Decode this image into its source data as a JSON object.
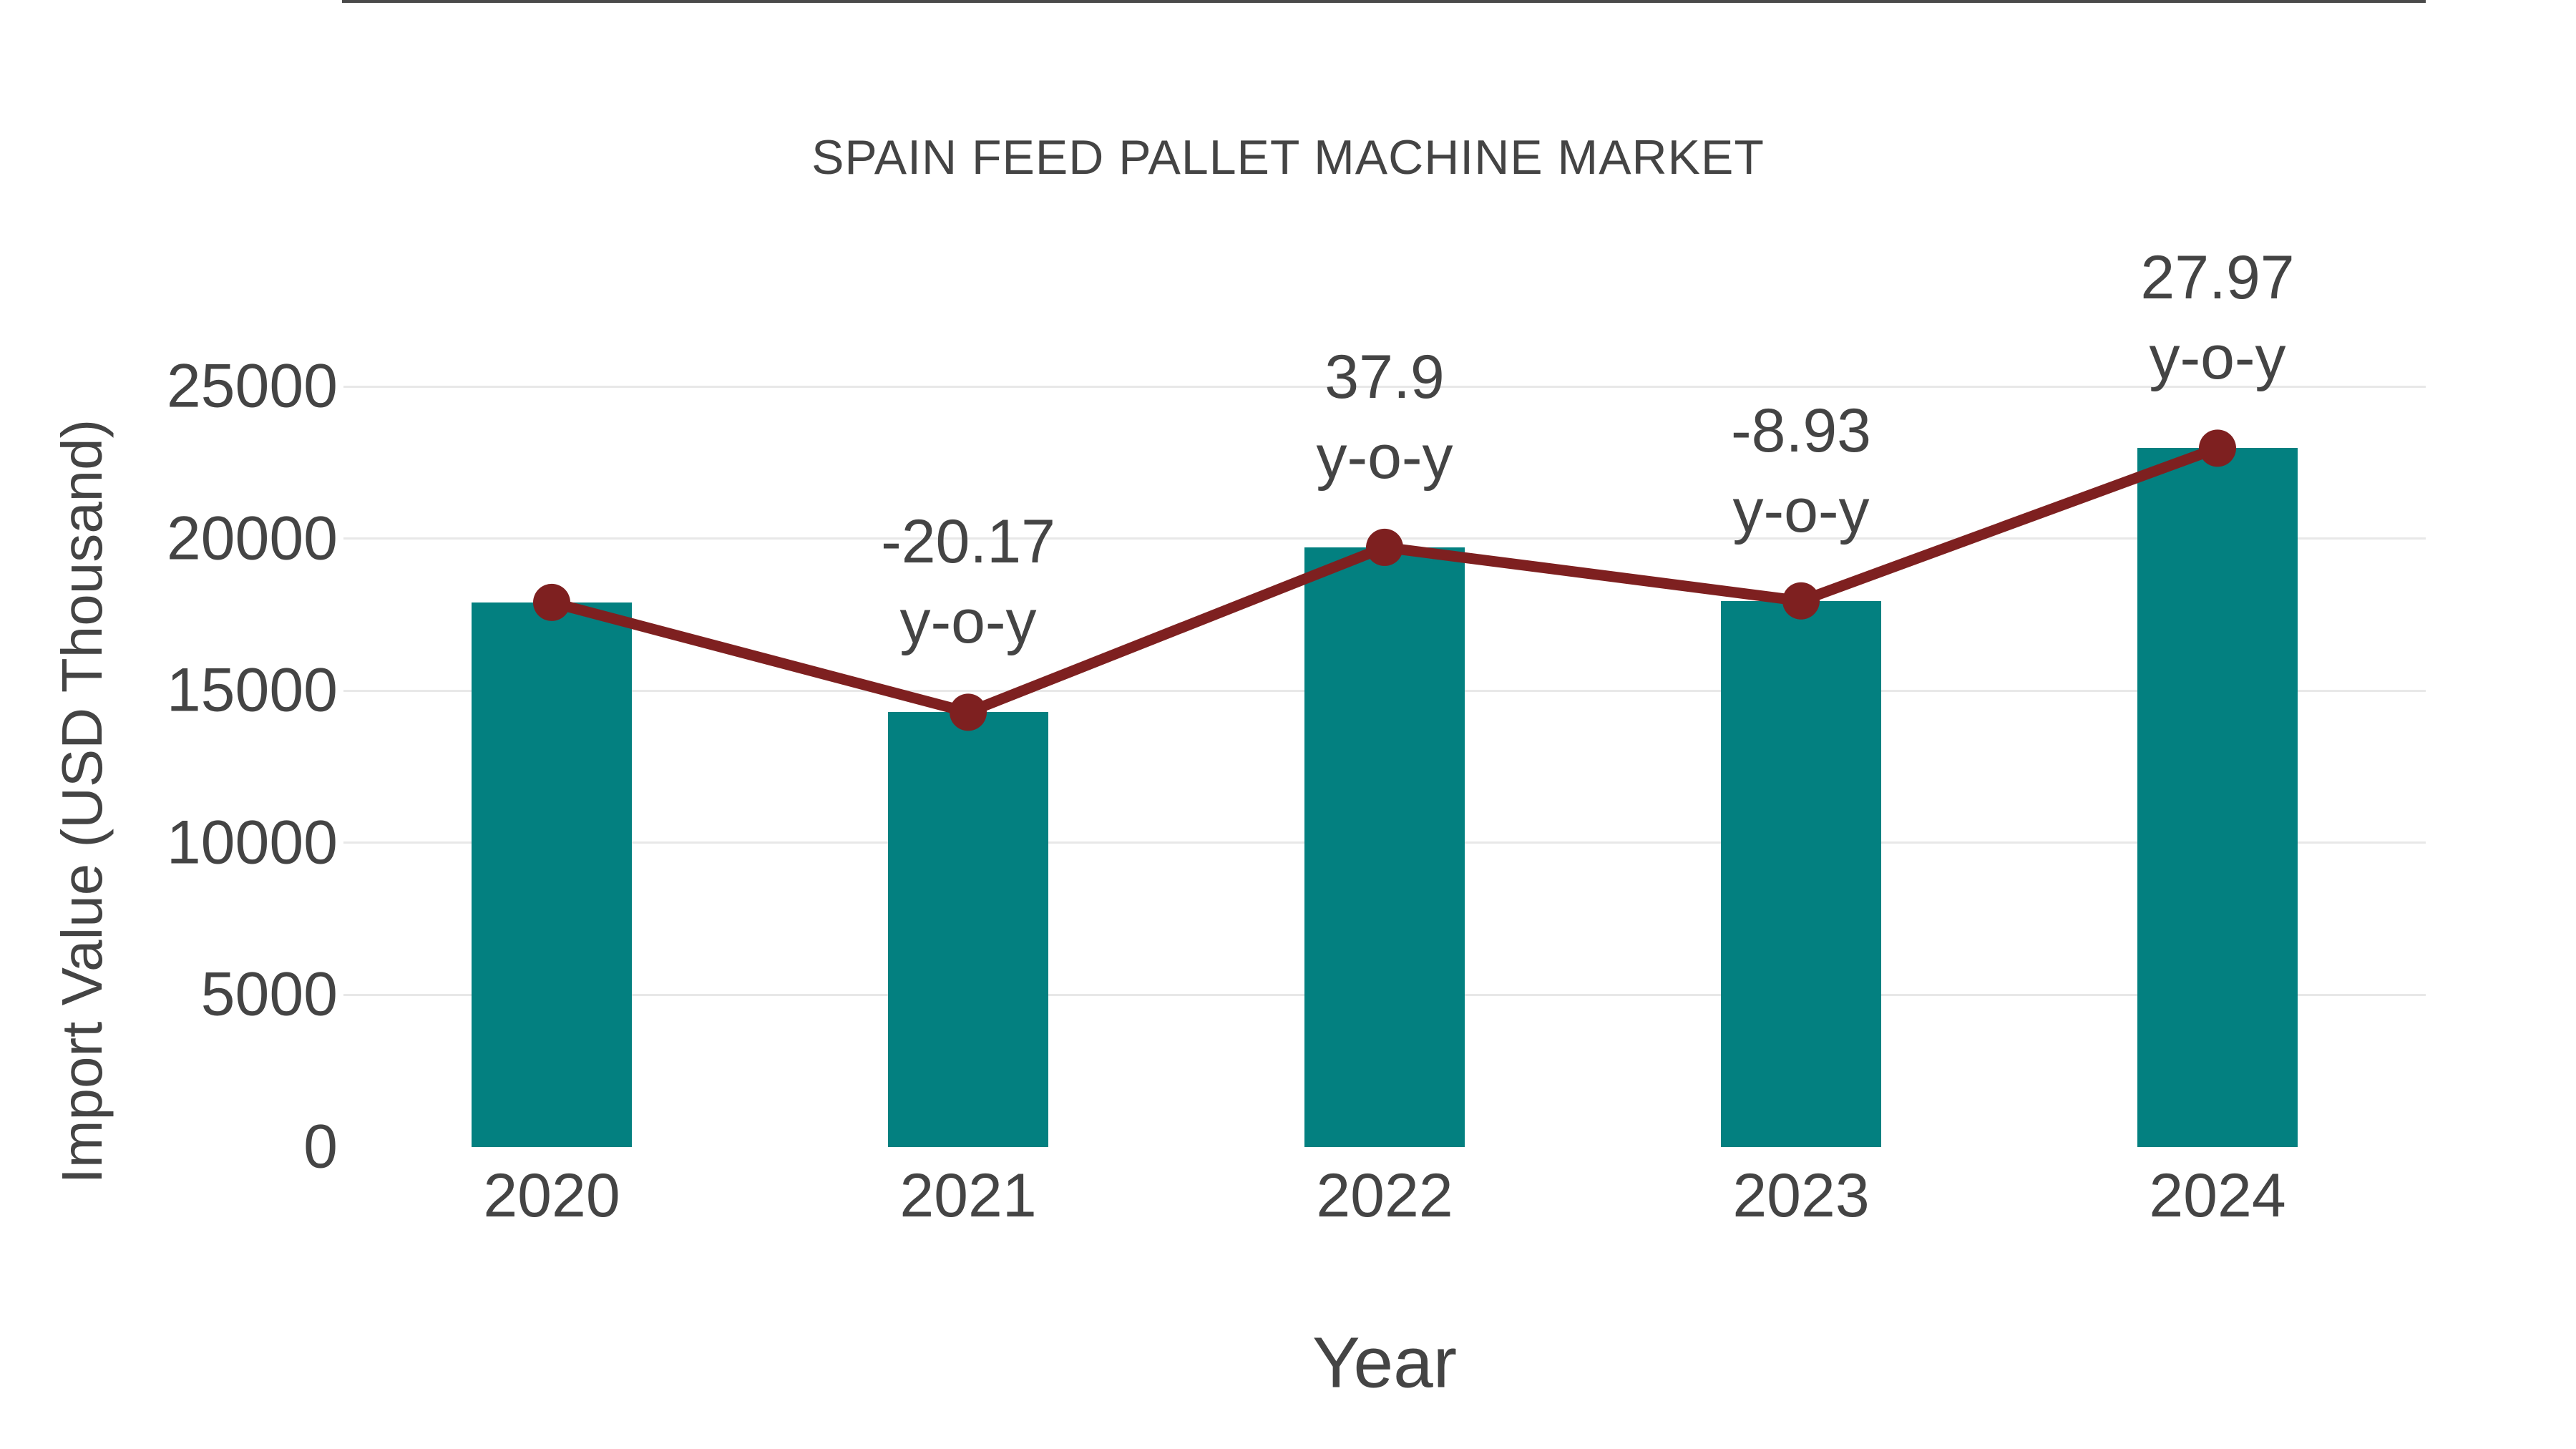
{
  "title": "SPAIN FEED PALLET MACHINE MARKET",
  "chart_data": {
    "type": "bar",
    "title": "SPAIN FEED PALLET MACHINE MARKET",
    "xlabel": "Year",
    "ylabel": "Import Value (USD Thousand)",
    "categories": [
      "2020",
      "2021",
      "2022",
      "2023",
      "2024"
    ],
    "series": [
      {
        "name": "import-value-bars",
        "type": "bar",
        "values": [
          17900,
          14290,
          19710,
          17950,
          22970
        ]
      },
      {
        "name": "import-value-trend-line",
        "type": "line",
        "values": [
          17900,
          14290,
          19710,
          17950,
          22970
        ]
      }
    ],
    "annotations": [
      {
        "category_index": 1,
        "value_label": "-20.17",
        "suffix_label": "y-o-y"
      },
      {
        "category_index": 2,
        "value_label": "37.9",
        "suffix_label": "y-o-y"
      },
      {
        "category_index": 3,
        "value_label": "-8.93",
        "suffix_label": "y-o-y"
      },
      {
        "category_index": 4,
        "value_label": "27.97",
        "suffix_label": "y-o-y"
      }
    ],
    "ylim": [
      0,
      25000
    ],
    "ytick_step": 5000,
    "yticks": [
      "0",
      "5000",
      "10000",
      "15000",
      "20000",
      "25000"
    ],
    "grid": true,
    "legend_visible": false
  },
  "colors": {
    "bar": "#038080",
    "line": "#7e2020",
    "text": "#444444",
    "gridline": "#e8e8e8",
    "zero_line": "#4a4a4a",
    "background": "#ffffff"
  }
}
